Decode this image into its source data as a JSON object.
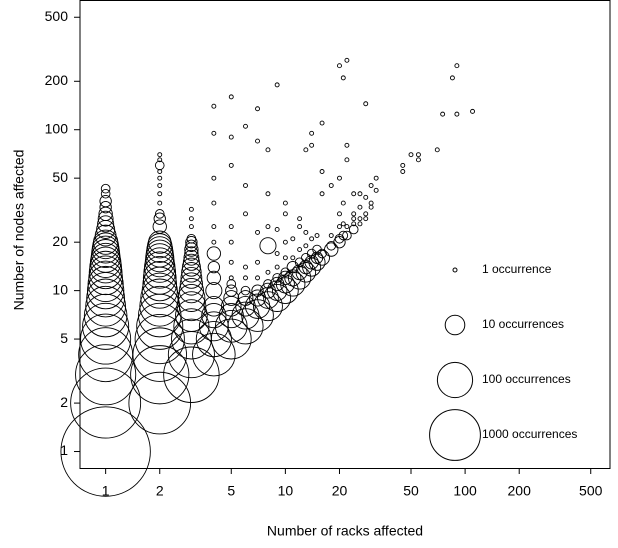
{
  "chart_data": {
    "type": "bubble",
    "xlabel": "Number of racks affected",
    "ylabel": "Number of nodes affected",
    "xscale": "log",
    "yscale": "log",
    "xlim": [
      0.72,
      640
    ],
    "ylim": [
      0.79,
      640
    ],
    "xticks": [
      1,
      2,
      5,
      10,
      20,
      50,
      100,
      200,
      500
    ],
    "yticks": [
      1,
      2,
      5,
      10,
      20,
      50,
      100,
      200,
      500
    ],
    "color": "#000000",
    "legend": [
      {
        "label": "1 occurrence",
        "size": 1
      },
      {
        "label": "10 occurrences",
        "size": 10
      },
      {
        "label": "100 occurrences",
        "size": 100
      },
      {
        "label": "1000 occurrences",
        "size": 1000
      }
    ],
    "points": [
      [
        1,
        1,
        300000
      ],
      [
        1,
        2,
        17000
      ],
      [
        1,
        3,
        4000
      ],
      [
        1,
        4,
        1600
      ],
      [
        1,
        5,
        900
      ],
      [
        1,
        6,
        500
      ],
      [
        1,
        7,
        300
      ],
      [
        1,
        8,
        200
      ],
      [
        1,
        9,
        150
      ],
      [
        1,
        10,
        120
      ],
      [
        1,
        11,
        100
      ],
      [
        1,
        12,
        80
      ],
      [
        1,
        13,
        70
      ],
      [
        1,
        14,
        60
      ],
      [
        1,
        15,
        50
      ],
      [
        1,
        16,
        40
      ],
      [
        1,
        17,
        35
      ],
      [
        1,
        18,
        30
      ],
      [
        1,
        19,
        25
      ],
      [
        1,
        20,
        20
      ],
      [
        1,
        22,
        12
      ],
      [
        1,
        24,
        8
      ],
      [
        1,
        26,
        6
      ],
      [
        1,
        28,
        5
      ],
      [
        1,
        30,
        4
      ],
      [
        1,
        33,
        3
      ],
      [
        1,
        36,
        3
      ],
      [
        1,
        40,
        2
      ],
      [
        1,
        43,
        2
      ],
      [
        2,
        2,
        5000
      ],
      [
        2,
        3,
        3000
      ],
      [
        2,
        4,
        1500
      ],
      [
        2,
        5,
        800
      ],
      [
        2,
        6,
        500
      ],
      [
        2,
        7,
        300
      ],
      [
        2,
        8,
        200
      ],
      [
        2,
        9,
        150
      ],
      [
        2,
        10,
        100
      ],
      [
        2,
        11,
        80
      ],
      [
        2,
        12,
        70
      ],
      [
        2,
        13,
        60
      ],
      [
        2,
        14,
        50
      ],
      [
        2,
        15,
        40
      ],
      [
        2,
        16,
        35
      ],
      [
        2,
        17,
        30
      ],
      [
        2,
        18,
        25
      ],
      [
        2,
        19,
        20
      ],
      [
        2,
        20,
        15
      ],
      [
        2,
        25,
        4
      ],
      [
        2,
        28,
        3
      ],
      [
        2,
        30,
        2
      ],
      [
        2,
        35,
        1
      ],
      [
        2,
        40,
        1
      ],
      [
        2,
        45,
        1
      ],
      [
        2,
        50,
        1
      ],
      [
        2,
        55,
        1
      ],
      [
        2,
        60,
        2
      ],
      [
        2,
        65,
        1
      ],
      [
        2,
        70,
        1
      ],
      [
        3,
        3,
        2000
      ],
      [
        3,
        4,
        500
      ],
      [
        3,
        5,
        200
      ],
      [
        3,
        6,
        100
      ],
      [
        3,
        7,
        60
      ],
      [
        3,
        8,
        40
      ],
      [
        3,
        9,
        30
      ],
      [
        3,
        10,
        20
      ],
      [
        3,
        11,
        15
      ],
      [
        3,
        12,
        12
      ],
      [
        3,
        13,
        10
      ],
      [
        3,
        14,
        8
      ],
      [
        3,
        15,
        6
      ],
      [
        3,
        16,
        5
      ],
      [
        3,
        17,
        4
      ],
      [
        3,
        18,
        4
      ],
      [
        3,
        19,
        3
      ],
      [
        3,
        20,
        3
      ],
      [
        3,
        21,
        2
      ],
      [
        3,
        25,
        1
      ],
      [
        3,
        28,
        1
      ],
      [
        3,
        32,
        1
      ],
      [
        4,
        4,
        300
      ],
      [
        4,
        5,
        100
      ],
      [
        4,
        6,
        40
      ],
      [
        4,
        7,
        20
      ],
      [
        4,
        8,
        10
      ],
      [
        4,
        10,
        6
      ],
      [
        4,
        12,
        4
      ],
      [
        4,
        14,
        3
      ],
      [
        4,
        17,
        4
      ],
      [
        4,
        20,
        1
      ],
      [
        4,
        25,
        1
      ],
      [
        4,
        35,
        1
      ],
      [
        4,
        50,
        1
      ],
      [
        4,
        95,
        1
      ],
      [
        4,
        140,
        1
      ],
      [
        5,
        5,
        200
      ],
      [
        5,
        6,
        60
      ],
      [
        5,
        7,
        20
      ],
      [
        5,
        8,
        10
      ],
      [
        5,
        9,
        5
      ],
      [
        5,
        10,
        3
      ],
      [
        5,
        11,
        2
      ],
      [
        5,
        12,
        1
      ],
      [
        5,
        15,
        1
      ],
      [
        5,
        20,
        1
      ],
      [
        5,
        25,
        1
      ],
      [
        5,
        60,
        1
      ],
      [
        5,
        90,
        1
      ],
      [
        5,
        160,
        1
      ],
      [
        6,
        6,
        100
      ],
      [
        6,
        7,
        30
      ],
      [
        6,
        8,
        10
      ],
      [
        6,
        9,
        5
      ],
      [
        6,
        10,
        2
      ],
      [
        6,
        12,
        1
      ],
      [
        6,
        14,
        1
      ],
      [
        6,
        30,
        1
      ],
      [
        6,
        45,
        1
      ],
      [
        6,
        105,
        1
      ],
      [
        7,
        7,
        60
      ],
      [
        7,
        8,
        20
      ],
      [
        7,
        9,
        6
      ],
      [
        7,
        10,
        3
      ],
      [
        7,
        12,
        1
      ],
      [
        7,
        15,
        1
      ],
      [
        7,
        23,
        1
      ],
      [
        7,
        85,
        1
      ],
      [
        7,
        135,
        1
      ],
      [
        8,
        8,
        40
      ],
      [
        8,
        9,
        12
      ],
      [
        8,
        10,
        5
      ],
      [
        8,
        11,
        2
      ],
      [
        8,
        13,
        1
      ],
      [
        8,
        19,
        6
      ],
      [
        8,
        25,
        1
      ],
      [
        8,
        40,
        1
      ],
      [
        8,
        75,
        1
      ],
      [
        9,
        9,
        30
      ],
      [
        9,
        10,
        10
      ],
      [
        9,
        11,
        4
      ],
      [
        9,
        12,
        2
      ],
      [
        9,
        14,
        1
      ],
      [
        9,
        17,
        1
      ],
      [
        9,
        24,
        1
      ],
      [
        9,
        190,
        1
      ],
      [
        10,
        10,
        25
      ],
      [
        10,
        11,
        8
      ],
      [
        10,
        12,
        4
      ],
      [
        10,
        13,
        2
      ],
      [
        10,
        16,
        1
      ],
      [
        10,
        20,
        1
      ],
      [
        10,
        30,
        1
      ],
      [
        10,
        35,
        1
      ],
      [
        11,
        11,
        20
      ],
      [
        11,
        12,
        6
      ],
      [
        11,
        14,
        3
      ],
      [
        11,
        16,
        1
      ],
      [
        11,
        21,
        1
      ],
      [
        12,
        12,
        15
      ],
      [
        12,
        13,
        5
      ],
      [
        12,
        15,
        2
      ],
      [
        12,
        18,
        1
      ],
      [
        12,
        25,
        1
      ],
      [
        12,
        28,
        1
      ],
      [
        13,
        13,
        10
      ],
      [
        13,
        14,
        4
      ],
      [
        13,
        16,
        2
      ],
      [
        13,
        19,
        1
      ],
      [
        13,
        23,
        1
      ],
      [
        13,
        75,
        1
      ],
      [
        14,
        14,
        8
      ],
      [
        14,
        15,
        4
      ],
      [
        14,
        17,
        2
      ],
      [
        14,
        21,
        1
      ],
      [
        14,
        80,
        1
      ],
      [
        14,
        95,
        1
      ],
      [
        15,
        15,
        6
      ],
      [
        15,
        16,
        3
      ],
      [
        15,
        18,
        2
      ],
      [
        15,
        22,
        1
      ],
      [
        16,
        16,
        5
      ],
      [
        16,
        17,
        2
      ],
      [
        16,
        40,
        1
      ],
      [
        16,
        55,
        1
      ],
      [
        16,
        110,
        1
      ],
      [
        18,
        18,
        4
      ],
      [
        18,
        19,
        2
      ],
      [
        18,
        22,
        1
      ],
      [
        18,
        45,
        1
      ],
      [
        20,
        20,
        3
      ],
      [
        20,
        21,
        2
      ],
      [
        20,
        25,
        1
      ],
      [
        20,
        30,
        1
      ],
      [
        20,
        50,
        1
      ],
      [
        20,
        250,
        1
      ],
      [
        21,
        210,
        1
      ],
      [
        21,
        22,
        2
      ],
      [
        21,
        26,
        1
      ],
      [
        21,
        35,
        1
      ],
      [
        22,
        22,
        2
      ],
      [
        22,
        25,
        1
      ],
      [
        22,
        270,
        1
      ],
      [
        22,
        80,
        1
      ],
      [
        22,
        65,
        1
      ],
      [
        24,
        24,
        2
      ],
      [
        24,
        26,
        1
      ],
      [
        24,
        28,
        1
      ],
      [
        24,
        30,
        1
      ],
      [
        24,
        40,
        1
      ],
      [
        26,
        26,
        1
      ],
      [
        26,
        28,
        1
      ],
      [
        26,
        33,
        1
      ],
      [
        26,
        40,
        1
      ],
      [
        28,
        28,
        1
      ],
      [
        28,
        30,
        1
      ],
      [
        28,
        38,
        1
      ],
      [
        28,
        145,
        1
      ],
      [
        30,
        33,
        1
      ],
      [
        30,
        35,
        1
      ],
      [
        30,
        45,
        1
      ],
      [
        32,
        50,
        1
      ],
      [
        32,
        42,
        1
      ],
      [
        45,
        55,
        1
      ],
      [
        45,
        60,
        1
      ],
      [
        50,
        70,
        1
      ],
      [
        55,
        65,
        1
      ],
      [
        55,
        70,
        1
      ],
      [
        70,
        75,
        1
      ],
      [
        75,
        125,
        1
      ],
      [
        85,
        210,
        1
      ],
      [
        90,
        125,
        1
      ],
      [
        90,
        250,
        1
      ],
      [
        110,
        130,
        1
      ]
    ]
  }
}
